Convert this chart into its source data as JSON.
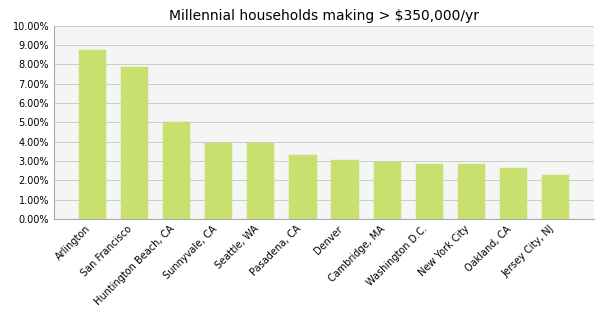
{
  "title": "Millennial households making > $350,000/yr",
  "categories": [
    "Arlington",
    "San Francisco",
    "Huntington Beach, CA",
    "Sunnyvale, CA",
    "Seattle, WA",
    "Pasadena, CA",
    "Denver",
    "Cambridge, MA",
    "Washington D.C.",
    "New York City",
    "Oakland, CA",
    "Jersey City, NJ"
  ],
  "values": [
    0.0875,
    0.0785,
    0.0503,
    0.0393,
    0.0393,
    0.0333,
    0.0305,
    0.0295,
    0.0285,
    0.0283,
    0.0262,
    0.0225
  ],
  "bar_color": "#c8e06e",
  "bar_edge_color": "#c8e06e",
  "ylim": [
    0,
    0.1
  ],
  "yticks": [
    0.0,
    0.01,
    0.02,
    0.03,
    0.04,
    0.05,
    0.06,
    0.07,
    0.08,
    0.09,
    0.1
  ],
  "background_color": "#ffffff",
  "plot_area_color": "#f5f5f5",
  "grid_color": "#cccccc",
  "title_fontsize": 10,
  "tick_fontsize": 7,
  "xtick_fontsize": 7
}
